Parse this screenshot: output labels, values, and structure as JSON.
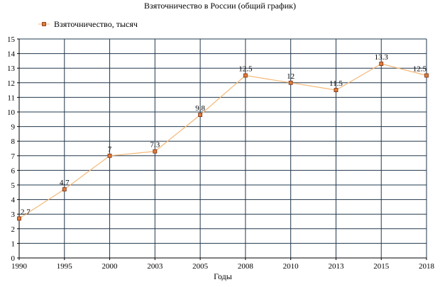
{
  "chart_data": {
    "type": "line",
    "title": "Взяточничество в России (общий график)",
    "xlabel": "Годы",
    "ylabel": "",
    "categories": [
      "1990",
      "1995",
      "2000",
      "2003",
      "2005",
      "2008",
      "2010",
      "2013",
      "2015",
      "2018"
    ],
    "series": [
      {
        "name": "Взяточничество, тысяч",
        "values": [
          2.7,
          4.7,
          7,
          7.3,
          9.8,
          12.5,
          12,
          11.5,
          13.3,
          12.5
        ],
        "labels": [
          "2.7",
          "4.7",
          "7",
          "7.3",
          "9.8",
          "12.5",
          "12",
          "11.5",
          "13.3",
          "12.5"
        ]
      }
    ],
    "y_ticks": [
      "0",
      "1",
      "2",
      "3",
      "4",
      "5",
      "6",
      "7",
      "8",
      "9",
      "10",
      "11",
      "12",
      "13",
      "14",
      "15"
    ],
    "ylim": [
      0,
      15
    ],
    "grid": true,
    "legend_position": "top-left",
    "colors": {
      "line": "#f5b877",
      "marker_fill": "#e07b39",
      "marker_stroke": "#7a2e10",
      "grid": "#22384d",
      "axis": "#000000"
    }
  }
}
